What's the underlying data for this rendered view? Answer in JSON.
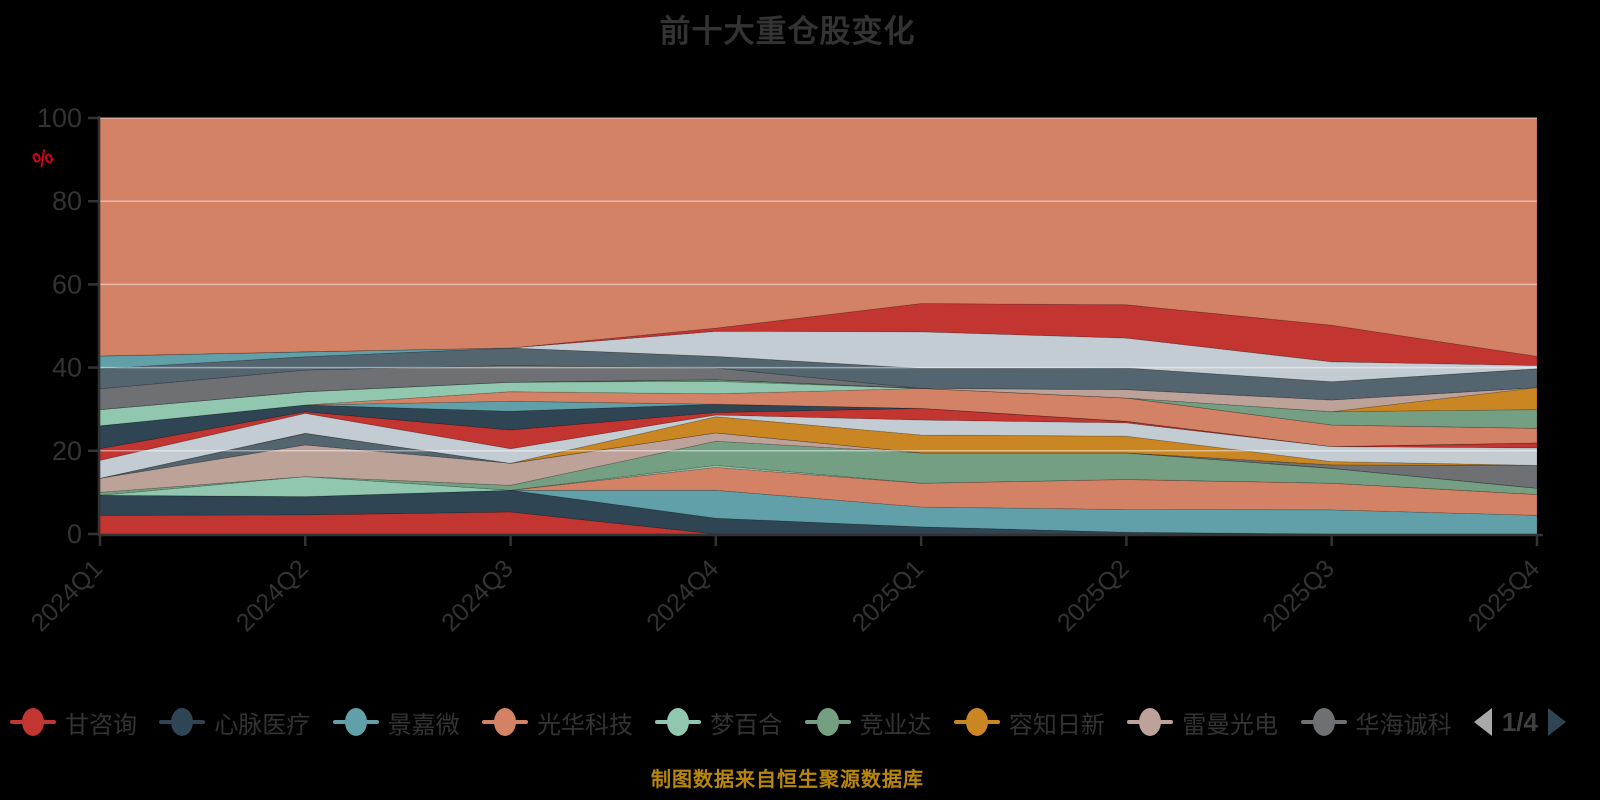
{
  "title": "前十大重仓股变化",
  "caption": "制图数据来自恒生聚源数据库",
  "axis": {
    "unit_label": "%",
    "unit_color": "#d0021b",
    "text_color": "#333333",
    "line_color": "#333333",
    "grid_color": "rgba(255,255,255,0.45)"
  },
  "legend": {
    "items": [
      {
        "id": "gan-zixun",
        "label": "甘咨询",
        "color": "#c23531"
      },
      {
        "id": "xinmai-yiliao",
        "label": "心脉医疗",
        "color": "#2f4554"
      },
      {
        "id": "jingjiawei",
        "label": "景嘉微",
        "color": "#61a0a8"
      },
      {
        "id": "guanghua-keji",
        "label": "光华科技",
        "color": "#d48265"
      },
      {
        "id": "mengbaihe",
        "label": "梦百合",
        "color": "#91c7ae"
      },
      {
        "id": "jingyeda",
        "label": "竞业达",
        "color": "#749f83"
      },
      {
        "id": "rongzhi-rixin",
        "label": "容知日新",
        "color": "#ca8622"
      },
      {
        "id": "leiman-guangdian",
        "label": "雷曼光电",
        "color": "#bda29a"
      },
      {
        "id": "huahai-chengke",
        "label": "华海诚科",
        "color": "#6e7074"
      }
    ],
    "pager": {
      "text": "1/4",
      "prev_color": "#a9a9a9",
      "next_color": "#2f4554"
    }
  },
  "chart_data": {
    "type": "area",
    "stacked": true,
    "title": "前十大重仓股变化",
    "xlabel": "",
    "ylabel": "%",
    "ylim": [
      0,
      100
    ],
    "yticks": [
      0,
      20,
      40,
      60,
      80,
      100
    ],
    "grid": true,
    "legend_position": "bottom",
    "categories": [
      "2024Q1",
      "2024Q2",
      "2024Q3",
      "2024Q4",
      "2025Q1",
      "2025Q2",
      "2025Q3",
      "2025Q4"
    ],
    "series": [
      {
        "id": "s1",
        "name": "甘咨询",
        "color": "#c23531",
        "values": [
          4.5,
          4.6,
          5.3,
          0,
          0,
          0,
          0,
          0
        ]
      },
      {
        "id": "s2",
        "name": "心脉医疗",
        "color": "#2f4554",
        "values": [
          4.8,
          4.4,
          5.2,
          3.8,
          1.7,
          0.4,
          0,
          0
        ]
      },
      {
        "id": "s3",
        "name": "景嘉微",
        "color": "#61a0a8",
        "values": [
          0,
          0,
          0,
          6.7,
          4.8,
          5.5,
          5.8,
          4.5
        ]
      },
      {
        "id": "s4",
        "name": "光华科技",
        "color": "#d48265",
        "values": [
          0,
          0,
          0,
          5.5,
          5.7,
          7.2,
          6.4,
          5.0
        ]
      },
      {
        "id": "s5",
        "name": "梦百合",
        "color": "#91c7ae",
        "values": [
          0,
          4.8,
          0,
          0.5,
          0,
          0,
          0,
          0
        ]
      },
      {
        "id": "s6",
        "name": "竞业达",
        "color": "#749f83",
        "values": [
          0.7,
          0,
          1.2,
          5.8,
          7.3,
          6.4,
          3.6,
          1.5
        ]
      },
      {
        "id": "s7",
        "name": "雷曼光电",
        "color": "#bda29a",
        "values": [
          3.4,
          7.6,
          5.3,
          2.0,
          0,
          0,
          0,
          0
        ]
      },
      {
        "id": "s8",
        "name": "",
        "color": "#546570",
        "values": [
          0,
          2.8,
          0,
          0,
          0,
          0,
          0,
          0
        ]
      },
      {
        "id": "s9",
        "name": "华海诚科",
        "color": "#6e7074",
        "values": [
          0,
          0,
          0,
          0,
          0,
          0,
          0.8,
          5.5
        ]
      },
      {
        "id": "s10",
        "name": "容知日新",
        "color": "#ca8622",
        "values": [
          0,
          0,
          0,
          3.9,
          4.3,
          4.0,
          0.8,
          0
        ]
      },
      {
        "id": "s11",
        "name": "",
        "color": "#c4ccd3",
        "values": [
          4.3,
          4.8,
          3.5,
          0.4,
          3.6,
          3.2,
          3.6,
          4.2
        ]
      },
      {
        "id": "s12",
        "name": "",
        "color": "#c23531",
        "values": [
          2.8,
          0.4,
          4.5,
          0.6,
          2.8,
          0.4,
          0,
          1.2
        ]
      },
      {
        "id": "s13",
        "name": "",
        "color": "#2f4554",
        "values": [
          5.5,
          1.6,
          4.5,
          2.0,
          0,
          0,
          0,
          0
        ]
      },
      {
        "id": "s14",
        "name": "",
        "color": "#61a0a8",
        "values": [
          0,
          0,
          2.4,
          0,
          0,
          0,
          0,
          0
        ]
      },
      {
        "id": "s15",
        "name": "",
        "color": "#d48265",
        "values": [
          0,
          0,
          2.3,
          2.5,
          4.8,
          5.6,
          5.2,
          3.5
        ]
      },
      {
        "id": "s16",
        "name": "",
        "color": "#91c7ae",
        "values": [
          3.9,
          3.2,
          2.3,
          3.0,
          0,
          0,
          0,
          0
        ]
      },
      {
        "id": "s17",
        "name": "",
        "color": "#749f83",
        "values": [
          0,
          0,
          0,
          0.4,
          0,
          0,
          3.2,
          4.5
        ]
      },
      {
        "id": "s18",
        "name": "",
        "color": "#ca8622",
        "values": [
          0,
          0,
          0,
          0,
          0,
          0,
          0,
          5.3
        ]
      },
      {
        "id": "s19",
        "name": "",
        "color": "#bda29a",
        "values": [
          0,
          0,
          0,
          0,
          0,
          2.0,
          2.8,
          0
        ]
      },
      {
        "id": "s20",
        "name": "",
        "color": "#6e7074",
        "values": [
          5.0,
          5.2,
          4.0,
          2.8,
          0,
          0,
          0,
          0
        ]
      },
      {
        "id": "s21",
        "name": "",
        "color": "#546570",
        "values": [
          4.8,
          3.2,
          4.2,
          2.8,
          4.8,
          5.2,
          4.4,
          4.5
        ]
      },
      {
        "id": "s22",
        "name": "",
        "color": "#61a0a8",
        "values": [
          3.1,
          1.2,
          0,
          0,
          0,
          0,
          0,
          0
        ]
      },
      {
        "id": "s23",
        "name": "",
        "color": "#c4ccd3",
        "values": [
          0,
          0,
          0,
          6.0,
          8.8,
          7.2,
          4.8,
          0.8
        ]
      },
      {
        "id": "s24",
        "name": "",
        "color": "#c23531",
        "values": [
          0,
          0,
          0,
          0.8,
          6.8,
          8.0,
          8.8,
          2.2
        ]
      },
      {
        "id": "s25",
        "name": "",
        "color": "#d48265",
        "values": [
          57.2,
          56.2,
          55.3,
          50.5,
          44.6,
          44.9,
          49.8,
          57.3
        ]
      }
    ]
  }
}
